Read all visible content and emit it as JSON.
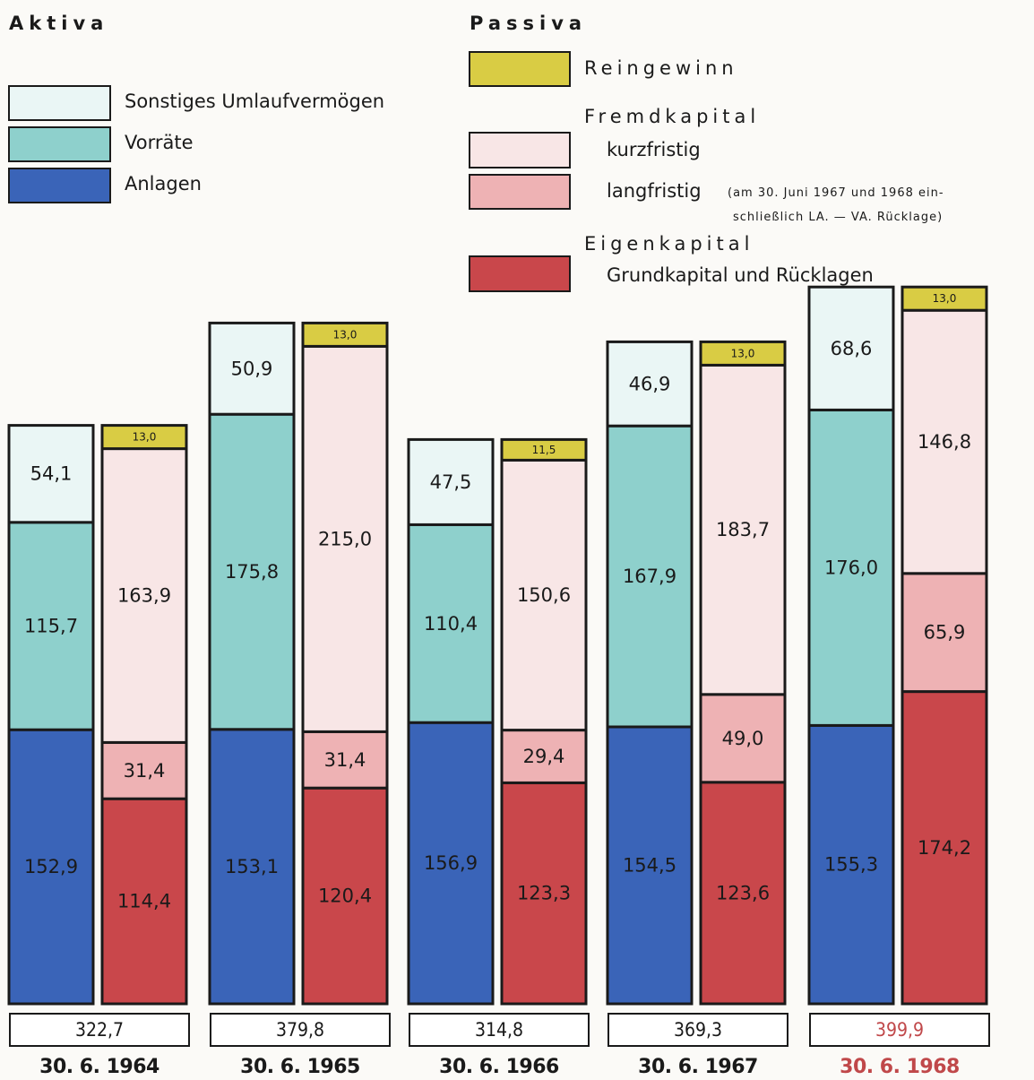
{
  "legend": {
    "aktiva_heading": "Aktiva",
    "passiva_heading": "Passiva",
    "aktiva": [
      {
        "label": "Sonstiges Umlaufvermögen",
        "color": "#eaf6f5"
      },
      {
        "label": "Vorräte",
        "color": "#8ed0cc"
      },
      {
        "label": "Anlagen",
        "color": "#3a64b8"
      }
    ],
    "reingewinn": {
      "label": "Reingewinn",
      "color": "#d9cc44"
    },
    "fremdkapital_heading": "Fremdkapital",
    "kurzfristig": {
      "label": "kurzfristig",
      "color": "#f8e6e6"
    },
    "langfristig": {
      "label": "langfristig",
      "color": "#eeb2b4"
    },
    "langfristig_note_1": "(am 30. Juni 1967 und 1968 ein-",
    "langfristig_note_2": "schließlich LA. — VA. Rücklage)",
    "eigenkapital_heading": "Eigenkapital",
    "eigenkapital": {
      "label": "Grundkapital und Rücklagen",
      "color": "#c9474b"
    }
  },
  "chart_data": {
    "type": "bar",
    "stacked": true,
    "categories": [
      "30. 6. 1964",
      "30. 6. 1965",
      "30. 6. 1966",
      "30. 6. 1967",
      "30. 6. 1968"
    ],
    "totals": [
      "322,7",
      "379,8",
      "314,8",
      "369,3",
      "399,9"
    ],
    "highlight_category": "30. 6. 1968",
    "highlight_color": "#c0484a",
    "aktiva_series": [
      {
        "name": "Anlagen",
        "color": "#3a64b8",
        "values": [
          152.9,
          153.1,
          156.9,
          154.5,
          155.3
        ],
        "labels": [
          "152,9",
          "153,1",
          "156,9",
          "154,5",
          "155,3"
        ]
      },
      {
        "name": "Vorräte",
        "color": "#8ed0cc",
        "values": [
          115.7,
          175.8,
          110.4,
          167.9,
          176.0
        ],
        "labels": [
          "115,7",
          "175,8",
          "110,4",
          "167,9",
          "176,0"
        ]
      },
      {
        "name": "Sonstiges Umlaufvermögen",
        "color": "#eaf6f5",
        "values": [
          54.1,
          50.9,
          47.5,
          46.9,
          68.6
        ],
        "labels": [
          "54,1",
          "50,9",
          "47,5",
          "46,9",
          "68,6"
        ]
      }
    ],
    "passiva_series": [
      {
        "name": "Grundkapital und Rücklagen",
        "color": "#c9474b",
        "values": [
          114.4,
          120.4,
          123.3,
          123.6,
          174.2
        ],
        "labels": [
          "114,4",
          "120,4",
          "123,3",
          "123,6",
          "174,2"
        ]
      },
      {
        "name": "langfristig",
        "color": "#eeb2b4",
        "values": [
          31.4,
          31.4,
          29.4,
          49.0,
          65.9
        ],
        "labels": [
          "31,4",
          "31,4",
          "29,4",
          "49,0",
          "65,9"
        ]
      },
      {
        "name": "kurzfristig",
        "color": "#f8e6e6",
        "values": [
          163.9,
          215.0,
          150.6,
          183.7,
          146.8
        ],
        "labels": [
          "163,9",
          "215,0",
          "150,6",
          "183,7",
          "146,8"
        ]
      },
      {
        "name": "Reingewinn",
        "color": "#d9cc44",
        "values": [
          13.0,
          13.0,
          11.5,
          13.0,
          13.0
        ],
        "labels": [
          "13,0",
          "13,0",
          "11,5",
          "13,0",
          "13,0"
        ]
      }
    ]
  }
}
